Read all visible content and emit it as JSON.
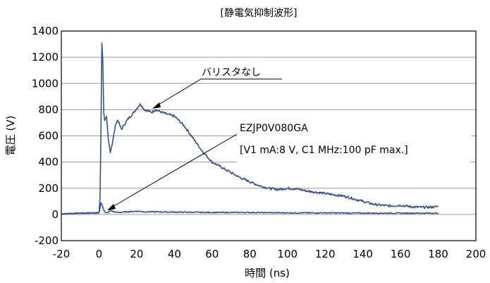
{
  "chart_data": {
    "type": "line",
    "title": "[静電気抑制波形]",
    "xlabel": "時間 (ns)",
    "ylabel": "電圧 (V)",
    "xlim": [
      -20,
      200
    ],
    "ylim": [
      -200,
      1400
    ],
    "x_ticks": [
      "-20",
      "0",
      "20",
      "40",
      "60",
      "80",
      "100",
      "120",
      "140",
      "160",
      "180",
      "200"
    ],
    "y_ticks": [
      "1400",
      "1200",
      "1000",
      "800",
      "600",
      "400",
      "200",
      "0",
      "-200"
    ],
    "grid": "horizontal",
    "series": [
      {
        "name": "バリスタなし",
        "color": "#3b5288",
        "x": [
          -20,
          -10,
          0,
          0.5,
          1,
          1.5,
          2,
          2.5,
          3,
          4,
          5,
          6,
          7,
          8,
          9,
          10,
          11,
          12,
          14,
          16,
          18,
          20,
          22,
          24,
          26,
          28,
          30,
          35,
          40,
          45,
          50,
          55,
          60,
          65,
          70,
          75,
          80,
          85,
          90,
          95,
          100,
          105,
          110,
          115,
          120,
          125,
          130,
          135,
          140,
          145,
          150,
          155,
          160,
          165,
          170,
          175,
          180
        ],
        "values": [
          5,
          10,
          12,
          120,
          600,
          1310,
          1180,
          780,
          720,
          740,
          560,
          480,
          540,
          620,
          700,
          720,
          680,
          650,
          700,
          740,
          770,
          810,
          845,
          800,
          790,
          780,
          800,
          770,
          750,
          680,
          580,
          480,
          400,
          360,
          320,
          280,
          250,
          220,
          200,
          190,
          200,
          195,
          180,
          170,
          160,
          150,
          140,
          120,
          100,
          80,
          70,
          65,
          70,
          60,
          55,
          55,
          60
        ]
      },
      {
        "name": "EZJP0V080GA",
        "color": "#3b5288",
        "x": [
          -20,
          -10,
          0,
          0.5,
          1,
          2,
          3,
          4,
          5,
          6,
          8,
          10,
          15,
          20,
          25,
          30,
          40,
          60,
          80,
          100,
          120,
          140,
          160,
          180
        ],
        "values": [
          5,
          10,
          12,
          50,
          90,
          60,
          20,
          10,
          15,
          30,
          20,
          15,
          20,
          25,
          20,
          20,
          18,
          15,
          15,
          12,
          12,
          10,
          10,
          10
        ]
      }
    ],
    "annotations": [
      {
        "text": "バリスタなし"
      },
      {
        "text": "EZJP0V080GA"
      },
      {
        "text": "[V1 mA:8 V, C1 MHz:100 pF max.]"
      }
    ]
  }
}
